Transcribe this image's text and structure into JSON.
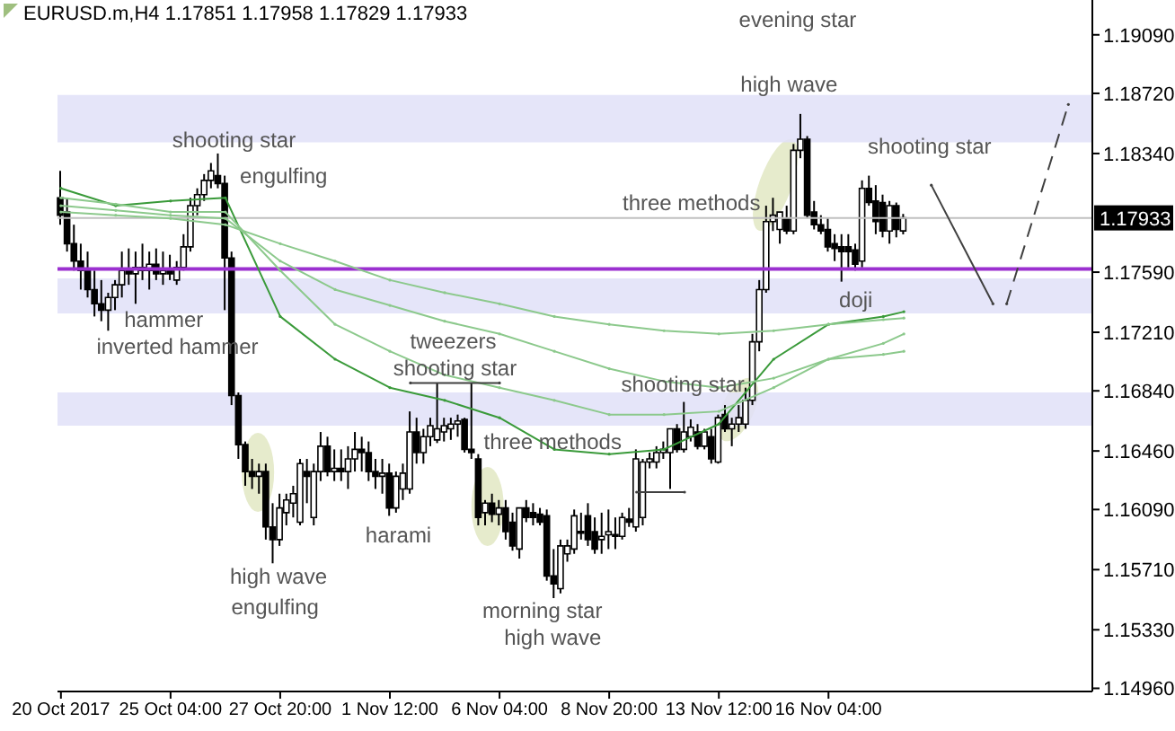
{
  "chart_data": {
    "type": "candlestick",
    "title": "EURUSD.m,H4 1.17851 1.17958 1.17829 1.17933",
    "categories": [
      "20 Oct 2017",
      null,
      null,
      null,
      null,
      null,
      null,
      null,
      null,
      null,
      null,
      null,
      null,
      null,
      null,
      null,
      "25 Oct 04:00",
      null,
      null,
      null,
      null,
      null,
      null,
      null,
      null,
      null,
      null,
      null,
      null,
      null,
      null,
      null,
      "27 Oct 20:00",
      null,
      null,
      null,
      null,
      null,
      null,
      null,
      null,
      null,
      null,
      null,
      null,
      null,
      null,
      null,
      "1 Nov 12:00",
      null,
      null,
      null,
      null,
      null,
      null,
      null,
      null,
      null,
      null,
      null,
      null,
      null,
      null,
      null,
      "6 Nov 04:00",
      null,
      null,
      null,
      null,
      null,
      null,
      null,
      null,
      null,
      null,
      null,
      null,
      null,
      null,
      null,
      "8 Nov 20:00",
      null,
      null,
      null,
      null,
      null,
      null,
      null,
      null,
      null,
      null,
      null,
      null,
      null,
      null,
      null,
      "13 Nov 12:00",
      null,
      null,
      null,
      null,
      null,
      null,
      null,
      null,
      null,
      null,
      null,
      null,
      null,
      null,
      null,
      "16 Nov 04:00",
      null,
      null,
      null,
      null,
      null,
      null,
      null,
      null,
      null,
      null,
      null,
      null,
      null,
      null,
      null,
      null,
      null,
      null,
      null,
      null,
      null,
      null,
      null,
      null,
      null,
      null,
      null,
      null,
      null,
      null,
      null,
      null,
      null,
      null,
      null,
      null,
      null,
      null
    ],
    "ohlc": [
      [
        1.1806,
        1.1823,
        1.1789,
        1.1795
      ],
      [
        1.1797,
        1.1806,
        1.1772,
        1.1777
      ],
      [
        1.1777,
        1.1789,
        1.176,
        1.1766
      ],
      [
        1.1766,
        1.1777,
        1.1748,
        1.176
      ],
      [
        1.176,
        1.1772,
        1.1743,
        1.1748
      ],
      [
        1.1748,
        1.176,
        1.1731,
        1.1739
      ],
      [
        1.1739,
        1.1754,
        1.1728,
        1.1735
      ],
      [
        1.1735,
        1.1746,
        1.1722,
        1.1743
      ],
      [
        1.1743,
        1.1754,
        1.1735,
        1.1751
      ],
      [
        1.1751,
        1.1772,
        1.1743,
        1.176
      ],
      [
        1.176,
        1.1774,
        1.1751,
        1.1758
      ],
      [
        1.1758,
        1.1772,
        1.1739,
        1.1762
      ],
      [
        1.1762,
        1.1777,
        1.1754,
        1.176
      ],
      [
        1.176,
        1.1772,
        1.1748,
        1.1764
      ],
      [
        1.1764,
        1.1774,
        1.1754,
        1.1758
      ],
      [
        1.1758,
        1.1772,
        1.1751,
        1.176
      ],
      [
        1.176,
        1.177,
        1.1754,
        1.1758
      ],
      [
        1.1754,
        1.1766,
        1.1751,
        1.1762
      ],
      [
        1.1762,
        1.1783,
        1.176,
        1.1775
      ],
      [
        1.1775,
        1.1806,
        1.1772,
        1.1801
      ],
      [
        1.1801,
        1.1812,
        1.1795,
        1.1808
      ],
      [
        1.1808,
        1.1821,
        1.1804,
        1.1817
      ],
      [
        1.1817,
        1.1828,
        1.1812,
        1.1823
      ],
      [
        1.182,
        1.1834,
        1.1812,
        1.1815
      ],
      [
        1.1815,
        1.182,
        1.1735,
        1.1768
      ],
      [
        1.1768,
        1.1772,
        1.1675,
        1.1681
      ],
      [
        1.1681,
        1.1683,
        1.1641,
        1.165
      ],
      [
        1.165,
        1.1652,
        1.1624,
        1.1633
      ],
      [
        1.1633,
        1.1641,
        1.1622,
        1.163
      ],
      [
        1.163,
        1.1638,
        1.1619,
        1.1633
      ],
      [
        1.1633,
        1.1638,
        1.159,
        1.1598
      ],
      [
        1.1598,
        1.1613,
        1.1575,
        1.159
      ],
      [
        1.159,
        1.1619,
        1.1586,
        1.161
      ],
      [
        1.1607,
        1.1619,
        1.1599,
        1.1615
      ],
      [
        1.1613,
        1.1624,
        1.1604,
        1.1619
      ],
      [
        1.1601,
        1.1641,
        1.1599,
        1.1638
      ],
      [
        1.1633,
        1.1641,
        1.1613,
        1.163
      ],
      [
        1.1604,
        1.1638,
        1.1599,
        1.1633
      ],
      [
        1.1633,
        1.1658,
        1.1627,
        1.1649
      ],
      [
        1.1649,
        1.1655,
        1.163,
        1.1633
      ],
      [
        1.1633,
        1.1647,
        1.1627,
        1.1635
      ],
      [
        1.1635,
        1.1647,
        1.1627,
        1.1633
      ],
      [
        1.1633,
        1.1649,
        1.1622,
        1.1641
      ],
      [
        1.1641,
        1.1658,
        1.1633,
        1.1647
      ],
      [
        1.1647,
        1.1655,
        1.1633,
        1.1645
      ],
      [
        1.1645,
        1.1652,
        1.1627,
        1.1633
      ],
      [
        1.1633,
        1.1641,
        1.1622,
        1.163
      ],
      [
        1.163,
        1.1641,
        1.1619,
        1.1632
      ],
      [
        1.1632,
        1.1638,
        1.1605,
        1.161
      ],
      [
        1.161,
        1.1633,
        1.1607,
        1.163
      ],
      [
        1.1622,
        1.1638,
        1.1615,
        1.1632
      ],
      [
        1.1622,
        1.1671,
        1.1619,
        1.1658
      ],
      [
        1.1658,
        1.1667,
        1.1638,
        1.1645
      ],
      [
        1.1645,
        1.166,
        1.1638,
        1.1655
      ],
      [
        1.1655,
        1.1667,
        1.1649,
        1.1662
      ],
      [
        1.1653,
        1.1689,
        1.1651,
        1.166
      ],
      [
        1.1658,
        1.1667,
        1.1652,
        1.1662
      ],
      [
        1.166,
        1.1667,
        1.1653,
        1.1663
      ],
      [
        1.1663,
        1.1669,
        1.1655,
        1.1665
      ],
      [
        1.1666,
        1.1667,
        1.1645,
        1.1647
      ],
      [
        1.1647,
        1.1689,
        1.1641,
        1.1645
      ],
      [
        1.1641,
        1.1644,
        1.1599,
        1.1604
      ],
      [
        1.1607,
        1.1615,
        1.1599,
        1.1613
      ],
      [
        1.1613,
        1.1619,
        1.1601,
        1.1606
      ],
      [
        1.1606,
        1.1615,
        1.1599,
        1.161
      ],
      [
        1.161,
        1.1615,
        1.159,
        1.1595
      ],
      [
        1.1601,
        1.1607,
        1.1583,
        1.1586
      ],
      [
        1.1584,
        1.161,
        1.1578,
        1.161
      ],
      [
        1.161,
        1.1615,
        1.1601,
        1.1604
      ],
      [
        1.1607,
        1.1613,
        1.1599,
        1.1604
      ],
      [
        1.1606,
        1.161,
        1.1599,
        1.1601
      ],
      [
        1.1605,
        1.1609,
        1.1564,
        1.1567
      ],
      [
        1.1567,
        1.1584,
        1.1553,
        1.1562
      ],
      [
        1.1559,
        1.159,
        1.1556,
        1.1586
      ],
      [
        1.1581,
        1.159,
        1.1576,
        1.1586
      ],
      [
        1.1584,
        1.1609,
        1.1581,
        1.1605
      ],
      [
        1.1595,
        1.1607,
        1.159,
        1.1594
      ],
      [
        1.1605,
        1.1613,
        1.1586,
        1.159
      ],
      [
        1.1595,
        1.1604,
        1.1581,
        1.1584
      ],
      [
        1.159,
        1.1607,
        1.1581,
        1.1592
      ],
      [
        1.1593,
        1.1609,
        1.1584,
        1.1595
      ],
      [
        1.1593,
        1.1604,
        1.1584,
        1.1592
      ],
      [
        1.1592,
        1.1607,
        1.159,
        1.1604
      ],
      [
        1.1603,
        1.161,
        1.1598,
        1.1601
      ],
      [
        1.1598,
        1.1647,
        1.1595,
        1.1641
      ],
      [
        1.1604,
        1.1641,
        1.1599,
        1.1639
      ],
      [
        1.1639,
        1.1645,
        1.1635,
        1.1641
      ],
      [
        1.1639,
        1.1649,
        1.1635,
        1.1645
      ],
      [
        1.1645,
        1.1652,
        1.1641,
        1.1647
      ],
      [
        1.1645,
        1.166,
        1.1622,
        1.166
      ],
      [
        1.166,
        1.1663,
        1.1645,
        1.1647
      ],
      [
        1.1647,
        1.1677,
        1.1645,
        1.1658
      ],
      [
        1.1655,
        1.1666,
        1.1652,
        1.1661
      ],
      [
        1.1658,
        1.1663,
        1.1647,
        1.1649
      ],
      [
        1.1649,
        1.166,
        1.1647,
        1.1658
      ],
      [
        1.1655,
        1.166,
        1.1638,
        1.1641
      ],
      [
        1.1639,
        1.1669,
        1.1638,
        1.1667
      ],
      [
        1.1669,
        1.1675,
        1.1658,
        1.166
      ],
      [
        1.166,
        1.1667,
        1.1649,
        1.1663
      ],
      [
        1.1663,
        1.1675,
        1.1658,
        1.1667
      ],
      [
        1.1663,
        1.1686,
        1.166,
        1.1678
      ],
      [
        1.1678,
        1.172,
        1.1675,
        1.1715
      ],
      [
        1.1715,
        1.1754,
        1.1709,
        1.1748
      ],
      [
        1.1748,
        1.1801,
        1.1746,
        1.1791
      ],
      [
        1.1791,
        1.1806,
        1.1785,
        1.1795
      ],
      [
        1.1786,
        1.1797,
        1.1777,
        1.1797
      ],
      [
        1.1793,
        1.1801,
        1.1783,
        1.1785
      ],
      [
        1.1785,
        1.184,
        1.1783,
        1.1836
      ],
      [
        1.1836,
        1.1859,
        1.1831,
        1.1843
      ],
      [
        1.1843,
        1.1845,
        1.1793,
        1.1795
      ],
      [
        1.1797,
        1.1804,
        1.1786,
        1.1789
      ],
      [
        1.1789,
        1.1795,
        1.1783,
        1.1785
      ],
      [
        1.1786,
        1.1793,
        1.1772,
        1.1775
      ],
      [
        1.1777,
        1.1783,
        1.1766,
        1.1774
      ],
      [
        1.1775,
        1.1783,
        1.1753,
        1.1772
      ],
      [
        1.1775,
        1.1783,
        1.1762,
        1.1772
      ],
      [
        1.1773,
        1.1777,
        1.176,
        1.1764
      ],
      [
        1.1766,
        1.1817,
        1.1762,
        1.1812
      ],
      [
        1.1812,
        1.182,
        1.1801,
        1.1803
      ],
      [
        1.1804,
        1.1814,
        1.1783,
        1.1791
      ],
      [
        1.1803,
        1.1808,
        1.1781,
        1.1785
      ],
      [
        1.1785,
        1.1804,
        1.1777,
        1.1801
      ],
      [
        1.1801,
        1.1803,
        1.1781,
        1.1786
      ],
      [
        1.17851,
        1.17958,
        1.17829,
        1.17933
      ],
      null,
      null,
      null,
      null,
      null,
      null,
      null,
      null,
      null,
      null,
      null,
      null,
      null,
      null,
      null,
      null,
      null,
      null,
      null,
      null,
      null,
      null,
      null,
      null,
      null,
      null,
      null
    ],
    "series": [
      {
        "type": "line",
        "color": "#3a9a3a",
        "values": [
          1.1812,
          null,
          null,
          null,
          null,
          null,
          null,
          null,
          1.1801,
          null,
          null,
          null,
          null,
          null,
          null,
          null,
          1.1804,
          null,
          null,
          null,
          null,
          null,
          null,
          null,
          1.1806,
          null,
          null,
          null,
          null,
          null,
          null,
          null,
          1.1731,
          null,
          null,
          null,
          null,
          null,
          null,
          null,
          1.1704,
          null,
          null,
          null,
          null,
          null,
          null,
          null,
          1.1686,
          null,
          null,
          null,
          null,
          null,
          null,
          null,
          1.1678,
          null,
          null,
          null,
          null,
          null,
          null,
          null,
          1.1667,
          null,
          null,
          null,
          null,
          null,
          null,
          null,
          1.1647,
          null,
          null,
          null,
          null,
          null,
          null,
          null,
          1.1644,
          null,
          null,
          null,
          null,
          null,
          null,
          null,
          1.1647,
          null,
          null,
          null,
          null,
          null,
          null,
          null,
          1.1663,
          null,
          null,
          null,
          null,
          null,
          null,
          null,
          1.1704,
          null,
          null,
          null,
          null,
          null,
          null,
          null,
          1.1726,
          null,
          null,
          null,
          null,
          null,
          null,
          null,
          1.1731,
          null,
          null,
          1.1734,
          null,
          null,
          null,
          null,
          null,
          null,
          null,
          null,
          null,
          null,
          null,
          null,
          null,
          null,
          null,
          null,
          null,
          null,
          null,
          null,
          null,
          null,
          null,
          null,
          null,
          null,
          null
        ]
      },
      {
        "type": "line",
        "color": "#8cc98c",
        "values": [
          1.1806,
          null,
          null,
          null,
          null,
          null,
          null,
          null,
          1.1802,
          null,
          null,
          null,
          null,
          null,
          null,
          null,
          1.1797,
          null,
          null,
          null,
          null,
          null,
          null,
          null,
          1.1797,
          null,
          null,
          null,
          null,
          null,
          null,
          null,
          1.176,
          null,
          null,
          null,
          null,
          null,
          null,
          null,
          1.1726,
          null,
          null,
          null,
          null,
          null,
          null,
          null,
          1.1709,
          null,
          null,
          null,
          null,
          null,
          null,
          null,
          1.1694,
          null,
          null,
          null,
          null,
          null,
          null,
          null,
          1.1686,
          null,
          null,
          null,
          null,
          null,
          null,
          null,
          1.1678,
          null,
          null,
          null,
          null,
          null,
          null,
          null,
          1.1669,
          null,
          null,
          null,
          null,
          null,
          null,
          null,
          1.1669,
          null,
          null,
          null,
          null,
          null,
          null,
          null,
          1.1671,
          null,
          null,
          null,
          null,
          null,
          null,
          null,
          1.1686,
          null,
          null,
          null,
          null,
          null,
          null,
          null,
          1.1704,
          null,
          null,
          null,
          null,
          null,
          null,
          null,
          1.1714,
          null,
          null,
          1.172,
          null,
          null,
          null,
          null,
          null,
          null,
          null,
          null,
          null,
          null,
          null,
          null,
          null,
          null,
          null,
          null,
          null,
          null,
          null,
          null,
          null,
          null,
          null,
          null,
          null,
          null,
          null
        ]
      },
      {
        "type": "line",
        "color": "#8cc98c",
        "values": [
          1.1801,
          null,
          null,
          null,
          null,
          null,
          null,
          null,
          1.1798,
          null,
          null,
          null,
          null,
          null,
          null,
          null,
          1.1795,
          null,
          null,
          null,
          null,
          null,
          null,
          null,
          1.1793,
          null,
          null,
          null,
          null,
          null,
          null,
          null,
          1.1766,
          null,
          null,
          null,
          null,
          null,
          null,
          null,
          1.1748,
          null,
          null,
          null,
          null,
          null,
          null,
          null,
          1.1738,
          null,
          null,
          null,
          null,
          null,
          null,
          null,
          1.1728,
          null,
          null,
          null,
          null,
          null,
          null,
          null,
          1.172,
          null,
          null,
          null,
          null,
          null,
          null,
          null,
          1.1709,
          null,
          null,
          null,
          null,
          null,
          null,
          null,
          1.1698,
          null,
          null,
          null,
          null,
          null,
          null,
          null,
          1.169,
          null,
          null,
          null,
          null,
          null,
          null,
          null,
          1.1686,
          null,
          null,
          null,
          null,
          null,
          null,
          null,
          1.1692,
          null,
          null,
          null,
          null,
          null,
          null,
          null,
          1.1704,
          null,
          null,
          null,
          null,
          null,
          null,
          null,
          1.1707,
          null,
          null,
          1.1709,
          null,
          null,
          null,
          null,
          null,
          null,
          null,
          null,
          null,
          null,
          null,
          null,
          null,
          null,
          null,
          null,
          null,
          null,
          null,
          null,
          null,
          null,
          null,
          null,
          null,
          null,
          null
        ]
      },
      {
        "type": "line",
        "color": "#8cc98c",
        "values": [
          1.1797,
          null,
          null,
          null,
          null,
          null,
          null,
          null,
          1.1795,
          null,
          null,
          null,
          null,
          null,
          null,
          null,
          1.1793,
          null,
          null,
          null,
          null,
          null,
          null,
          null,
          1.1789,
          null,
          null,
          null,
          null,
          null,
          null,
          null,
          1.1777,
          null,
          null,
          null,
          null,
          null,
          null,
          null,
          1.1766,
          null,
          null,
          null,
          null,
          null,
          null,
          null,
          1.1754,
          null,
          null,
          null,
          null,
          null,
          null,
          null,
          1.1746,
          null,
          null,
          null,
          null,
          null,
          null,
          null,
          1.1739,
          null,
          null,
          null,
          null,
          null,
          null,
          null,
          1.1731,
          null,
          null,
          null,
          null,
          null,
          null,
          null,
          1.1726,
          null,
          null,
          null,
          null,
          null,
          null,
          null,
          1.1722,
          null,
          null,
          null,
          null,
          null,
          null,
          null,
          1.172,
          null,
          null,
          null,
          null,
          null,
          null,
          null,
          1.1722,
          null,
          null,
          null,
          null,
          null,
          null,
          null,
          1.1726,
          null,
          null,
          null,
          null,
          null,
          null,
          null,
          1.1729,
          null,
          null,
          1.173,
          null,
          null,
          null,
          null,
          null,
          null,
          null,
          null,
          null,
          null,
          null,
          null,
          null,
          null,
          null,
          null,
          null,
          null,
          null,
          null,
          null,
          null,
          null,
          null,
          null,
          null,
          null
        ]
      },
      {
        "type": "line",
        "color": "#404040",
        "values": [
          null,
          null,
          null,
          null,
          null,
          null,
          null,
          null,
          null,
          null,
          null,
          null,
          null,
          null,
          null,
          null,
          null,
          null,
          null,
          null,
          null,
          null,
          null,
          null,
          null,
          null,
          null,
          null,
          null,
          null,
          null,
          null,
          null,
          null,
          null,
          null,
          null,
          null,
          null,
          null,
          null,
          null,
          null,
          null,
          null,
          null,
          null,
          null,
          null,
          null,
          null,
          1.1689,
          null,
          null,
          null,
          null,
          null,
          null,
          null,
          null,
          null,
          null,
          null,
          null,
          1.1689,
          null,
          null,
          null,
          null,
          null,
          null,
          null,
          null,
          null,
          null,
          null,
          null,
          null,
          null,
          null,
          null,
          null,
          null,
          null,
          null,
          null,
          null,
          null,
          null,
          null,
          null,
          null,
          null,
          null,
          null,
          null,
          null,
          null,
          null,
          null,
          null,
          null,
          null,
          null,
          null,
          null,
          null,
          null,
          null,
          null,
          null,
          null,
          null,
          null,
          null,
          null,
          null,
          null,
          null,
          null,
          null,
          null,
          null,
          null,
          null,
          null,
          null,
          null,
          null,
          null,
          null,
          null,
          null,
          null,
          null,
          null,
          null,
          null,
          null,
          null,
          null,
          null,
          null,
          null,
          null,
          null,
          null,
          null,
          null,
          null,
          null
        ]
      },
      {
        "type": "line",
        "color": "#404040",
        "values": [
          null,
          null,
          null,
          null,
          null,
          null,
          null,
          null,
          null,
          null,
          null,
          null,
          null,
          null,
          null,
          null,
          null,
          null,
          null,
          null,
          null,
          null,
          null,
          null,
          null,
          null,
          null,
          null,
          null,
          null,
          null,
          null,
          null,
          null,
          null,
          null,
          null,
          null,
          null,
          null,
          null,
          null,
          null,
          null,
          null,
          null,
          null,
          null,
          null,
          null,
          null,
          null,
          null,
          null,
          null,
          null,
          null,
          null,
          null,
          null,
          null,
          null,
          null,
          null,
          null,
          null,
          null,
          null,
          null,
          null,
          null,
          null,
          null,
          null,
          null,
          null,
          null,
          null,
          null,
          null,
          null,
          null,
          null,
          null,
          1.162,
          null,
          null,
          null,
          null,
          null,
          null,
          1.162,
          null,
          null,
          null,
          null,
          null,
          null,
          null,
          null,
          null,
          null,
          null,
          null,
          null,
          null,
          null,
          null,
          null,
          null,
          null,
          null,
          null,
          null,
          null,
          null,
          null,
          null,
          null,
          null,
          null,
          null,
          null,
          null,
          null,
          null,
          null,
          null,
          null,
          null,
          null,
          null,
          null,
          null,
          null,
          null,
          null,
          null,
          null,
          null,
          null,
          null,
          null,
          null,
          null,
          null,
          null,
          null,
          null,
          null,
          null
        ]
      },
      {
        "type": "line",
        "color": "#404040",
        "values": [
          null,
          null,
          null,
          null,
          null,
          null,
          null,
          null,
          null,
          null,
          null,
          null,
          null,
          null,
          null,
          null,
          null,
          null,
          null,
          null,
          null,
          null,
          null,
          null,
          null,
          null,
          null,
          null,
          null,
          null,
          null,
          null,
          null,
          null,
          null,
          null,
          null,
          null,
          null,
          null,
          null,
          null,
          null,
          null,
          null,
          null,
          null,
          null,
          null,
          null,
          null,
          null,
          null,
          null,
          null,
          null,
          null,
          null,
          null,
          null,
          null,
          null,
          null,
          null,
          null,
          null,
          null,
          null,
          null,
          null,
          null,
          null,
          null,
          null,
          null,
          null,
          null,
          null,
          null,
          null,
          null,
          null,
          null,
          null,
          null,
          null,
          null,
          null,
          null,
          null,
          null,
          null,
          null,
          null,
          null,
          null,
          null,
          null,
          null,
          null,
          null,
          null,
          null,
          null,
          null,
          null,
          null,
          null,
          null,
          null,
          null,
          null,
          null,
          null,
          null,
          null,
          null,
          null,
          null,
          null,
          null,
          null,
          null,
          null,
          null,
          null,
          null,
          1.1814,
          null,
          null,
          null,
          null,
          null,
          null,
          null,
          null,
          1.1739,
          null,
          null,
          null,
          null,
          null,
          null,
          null,
          null,
          null,
          null,
          null,
          null,
          null,
          null
        ]
      },
      {
        "type": "line",
        "color": "#404040",
        "line_style": "dashed",
        "values": [
          null,
          null,
          null,
          null,
          null,
          null,
          null,
          null,
          null,
          null,
          null,
          null,
          null,
          null,
          null,
          null,
          null,
          null,
          null,
          null,
          null,
          null,
          null,
          null,
          null,
          null,
          null,
          null,
          null,
          null,
          null,
          null,
          null,
          null,
          null,
          null,
          null,
          null,
          null,
          null,
          null,
          null,
          null,
          null,
          null,
          null,
          null,
          null,
          null,
          null,
          null,
          null,
          null,
          null,
          null,
          null,
          null,
          null,
          null,
          null,
          null,
          null,
          null,
          null,
          null,
          null,
          null,
          null,
          null,
          null,
          null,
          null,
          null,
          null,
          null,
          null,
          null,
          null,
          null,
          null,
          null,
          null,
          null,
          null,
          null,
          null,
          null,
          null,
          null,
          null,
          null,
          null,
          null,
          null,
          null,
          null,
          null,
          null,
          null,
          null,
          null,
          null,
          null,
          null,
          null,
          null,
          null,
          null,
          null,
          null,
          null,
          null,
          null,
          null,
          null,
          null,
          null,
          null,
          null,
          null,
          null,
          null,
          null,
          null,
          null,
          null,
          null,
          null,
          null,
          null,
          null,
          null,
          null,
          null,
          null,
          null,
          null,
          null,
          1.1739,
          null,
          null,
          null,
          null,
          null,
          null,
          null,
          null,
          1.1865,
          null,
          null,
          null
        ]
      }
    ],
    "ylim": [
      1.1494,
      1.1931
    ],
    "yticks": [
      {
        "value": 1.1909,
        "label": "1.19090"
      },
      {
        "value": 1.1872,
        "label": "1.18720"
      },
      {
        "value": 1.1834,
        "label": "1.18340"
      },
      {
        "value": 1.1759,
        "label": "1.17590"
      },
      {
        "value": 1.1721,
        "label": "1.17210"
      },
      {
        "value": 1.1684,
        "label": "1.16840"
      },
      {
        "value": 1.1646,
        "label": "1.16460"
      },
      {
        "value": 1.1609,
        "label": "1.16090"
      },
      {
        "value": 1.1571,
        "label": "1.15710"
      },
      {
        "value": 1.1533,
        "label": "1.15330"
      },
      {
        "value": 1.1496,
        "label": "1.14960"
      }
    ],
    "bands": [
      {
        "axis": "y",
        "from": 1.1841,
        "to": 1.1871,
        "color": "#e0e0f8"
      },
      {
        "axis": "y",
        "from": 1.1733,
        "to": 1.1755,
        "color": "#e0e0f8"
      },
      {
        "axis": "y",
        "from": 1.1662,
        "to": 1.1683,
        "color": "#e0e0f8"
      }
    ],
    "ref_lines": [
      {
        "axis": "y",
        "value": 1.1761,
        "color": "#9b30d0"
      },
      {
        "axis": "y",
        "value": 1.17933,
        "label": "1.17933",
        "color": "#c0c0c0"
      }
    ],
    "annotations": [
      "shooting star",
      "engulfing",
      "hammer",
      "inverted hammer",
      "high wave",
      "engulfing",
      "tweezers",
      "shooting star",
      "harami",
      "three methods",
      "morning star",
      "high wave",
      {
        "text": "shooting star",
        "y": 1.1686
      },
      "three methods",
      "evening star",
      "high wave",
      {
        "text": "shooting star",
        "y": 1.1817
      },
      "doji"
    ]
  }
}
